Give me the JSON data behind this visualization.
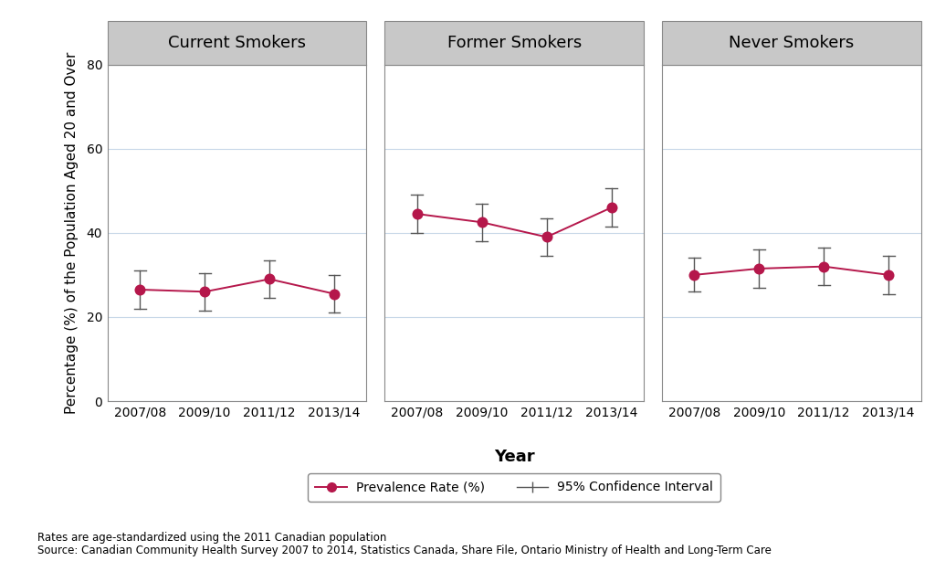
{
  "panels": [
    "Current Smokers",
    "Former Smokers",
    "Never Smokers"
  ],
  "x_labels": [
    "2007/08",
    "2009/10",
    "2011/12",
    "2013/14"
  ],
  "x_positions": [
    0,
    1,
    2,
    3
  ],
  "current_smokers": {
    "values": [
      26.5,
      26.0,
      29.0,
      25.5
    ],
    "ci_lower": [
      22.0,
      21.5,
      24.5,
      21.0
    ],
    "ci_upper": [
      31.0,
      30.5,
      33.5,
      30.0
    ]
  },
  "former_smokers": {
    "values": [
      44.5,
      42.5,
      39.0,
      46.0
    ],
    "ci_lower": [
      40.0,
      38.0,
      34.5,
      41.5
    ],
    "ci_upper": [
      49.0,
      47.0,
      43.5,
      50.5
    ]
  },
  "never_smokers": {
    "values": [
      30.0,
      31.5,
      32.0,
      30.0
    ],
    "ci_lower": [
      26.0,
      27.0,
      27.5,
      25.5
    ],
    "ci_upper": [
      34.0,
      36.0,
      36.5,
      34.5
    ]
  },
  "line_color": "#b5174b",
  "ci_color": "#555555",
  "ylabel": "Percentage (%) of the Population Aged 20 and Over",
  "xlabel": "Year",
  "ylim": [
    0,
    80
  ],
  "yticks": [
    0,
    20,
    40,
    60,
    80
  ],
  "panel_header_color": "#c8c8c8",
  "panel_header_fontsize": 13,
  "axis_fontsize": 11,
  "tick_fontsize": 10,
  "footnote1": "Rates are age-standardized using the 2011 Canadian population",
  "footnote2": "Source: Canadian Community Health Survey 2007 to 2014, Statistics Canada, Share File, Ontario Ministry of Health and Long-Term Care",
  "legend_label1": "Prevalence Rate (%)",
  "legend_label2": "95% Confidence Interval",
  "background_color": "#ffffff",
  "grid_color": "#c8d8e8",
  "spine_color": "#888888"
}
